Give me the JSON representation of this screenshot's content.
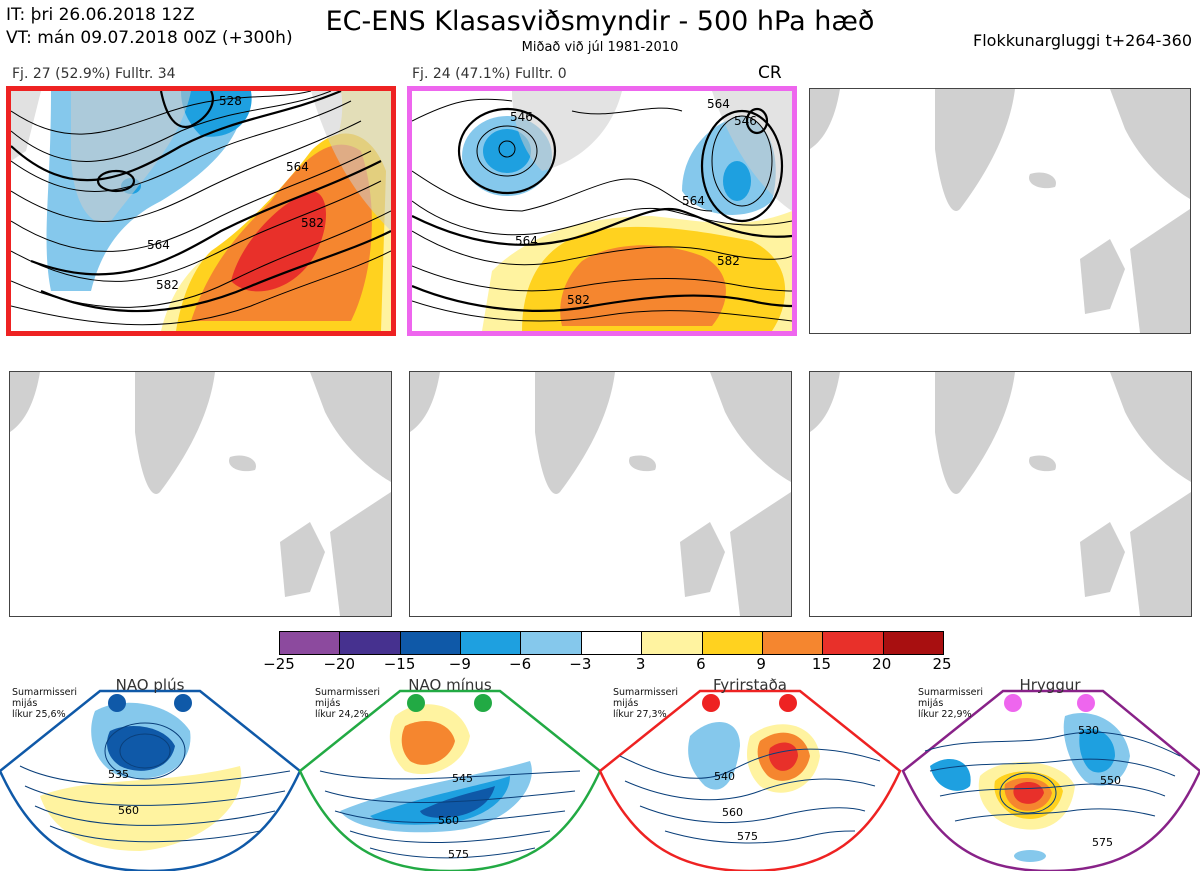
{
  "header": {
    "it_line": "IT: þri 26.06.2018 12Z",
    "vt_line": "VT: mán 09.07.2018 00Z  (+300h)",
    "title": "EC-ENS Klasasviðsmyndir - 500 hPa hæð",
    "subtitle": "Miðað við júl 1981-2010",
    "window": "Flokkunargluggi t+264-360"
  },
  "clusters": [
    {
      "label": "Fj. 27 (52.9%)   Fulltr. 34",
      "border_color": "#ee2222",
      "contours": [
        "564",
        "582",
        "528",
        "564",
        "582"
      ]
    },
    {
      "label": "Fj. 24 (47.1%)   Fulltr. 0",
      "border_color": "#ee66ee",
      "contours": [
        "546",
        "564",
        "564",
        "582",
        "582",
        "546",
        "564"
      ]
    }
  ],
  "cr_label": "CR",
  "colorbar": {
    "ticks": [
      "−25",
      "−20",
      "−15",
      "−9",
      "−6",
      "−3",
      "3",
      "6",
      "9",
      "15",
      "20",
      "25"
    ],
    "colors": [
      "#8c4a9e",
      "#46318f",
      "#0f59a8",
      "#1ea0e0",
      "#85c8ec",
      "#ffffff",
      "#fff3a0",
      "#ffd21f",
      "#f5862f",
      "#e8302a",
      "#a80f10"
    ]
  },
  "regimes": [
    {
      "name": "NAO plús",
      "note": [
        "Sumarmisseri",
        "mijás",
        "líkur 25,6%"
      ],
      "color": "#0f59a8",
      "contours": [
        "535",
        "560"
      ]
    },
    {
      "name": "NAO mínus",
      "note": [
        "Sumarmisseri",
        "mijás",
        "líkur 24,2%"
      ],
      "color": "#22aa44",
      "contours": [
        "545",
        "560",
        "575"
      ]
    },
    {
      "name": "Fyrirstaða",
      "note": [
        "Sumarmisseri",
        "mijás",
        "líkur 27,3%"
      ],
      "color": "#ee2222",
      "contours": [
        "540",
        "560",
        "575"
      ]
    },
    {
      "name": "Hryggur",
      "note": [
        "Sumarmisseri",
        "mijás",
        "líkur 22,9%"
      ],
      "color": "#ee66ee",
      "contours": [
        "530",
        "550",
        "575"
      ]
    }
  ]
}
